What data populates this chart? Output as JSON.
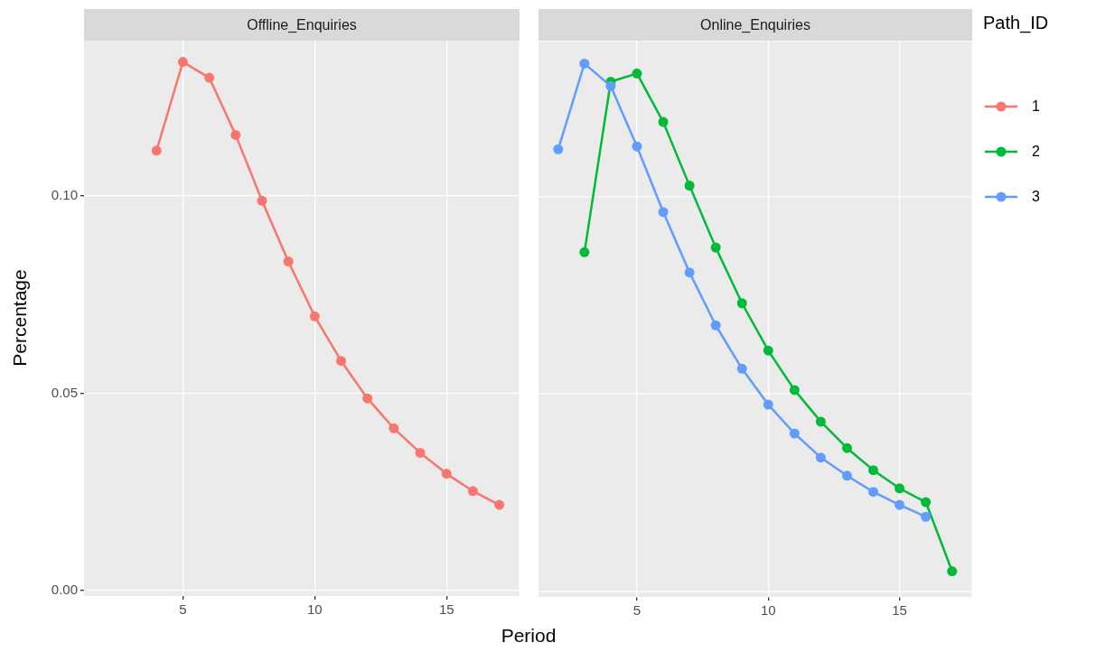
{
  "chart_data": [
    {
      "type": "line",
      "title": "Offline_Enquiries",
      "xlabel": "Period",
      "ylabel": "Percentage",
      "xlim": [
        1.25,
        17.75
      ],
      "xticks": [
        5,
        10,
        15
      ],
      "ylim": [
        -0.0014,
        0.1394
      ],
      "yticks": [
        {
          "value": 0,
          "label": "0.00"
        },
        {
          "value": 0.05,
          "label": "0.05"
        },
        {
          "value": 0.1,
          "label": "0.10"
        }
      ],
      "grid": true,
      "marker": "circle",
      "legend": "right",
      "series": [
        {
          "name": "1",
          "color": "#f8766d",
          "x": [
            4,
            5,
            6,
            7,
            8,
            9,
            10,
            11,
            12,
            13,
            14,
            15,
            16,
            17
          ],
          "values": [
            0.1115,
            0.134,
            0.13,
            0.1155,
            0.0988,
            0.0834,
            0.0695,
            0.0582,
            0.0487,
            0.0411,
            0.0349,
            0.0296,
            0.0252,
            0.0217
          ]
        }
      ]
    },
    {
      "type": "line",
      "title": "Online_Enquiries",
      "xlim": [
        1.25,
        17.75
      ],
      "xticks": [
        5,
        10,
        15
      ],
      "ylim": [
        -0.0014,
        0.1394
      ],
      "yticks": [
        {
          "value": 0,
          "label": null
        },
        {
          "value": 0.05,
          "label": null
        },
        {
          "value": 0.1,
          "label": null
        }
      ],
      "tick_labels": "x",
      "grid": true,
      "marker": "circle",
      "legend": "right",
      "legend_title": "Path_ID",
      "series": [
        {
          "name": "2",
          "color": "#00ba38",
          "x": [
            3,
            4,
            5,
            6,
            7,
            8,
            9,
            10,
            11,
            12,
            13,
            14,
            15,
            16,
            17
          ],
          "values": [
            0.0859,
            0.1291,
            0.1312,
            0.1189,
            0.1028,
            0.0871,
            0.073,
            0.061,
            0.051,
            0.043,
            0.0363,
            0.0307,
            0.0261,
            0.0226,
            0.0051
          ]
        },
        {
          "name": "3",
          "color": "#619cff",
          "x": [
            2,
            3,
            4,
            5,
            6,
            7,
            8,
            9,
            10,
            11,
            12,
            13,
            14,
            15,
            16
          ],
          "values": [
            0.112,
            0.1337,
            0.128,
            0.1127,
            0.0961,
            0.0808,
            0.0674,
            0.0564,
            0.0473,
            0.04,
            0.0339,
            0.0293,
            0.0252,
            0.0219,
            0.0189
          ]
        }
      ]
    }
  ]
}
